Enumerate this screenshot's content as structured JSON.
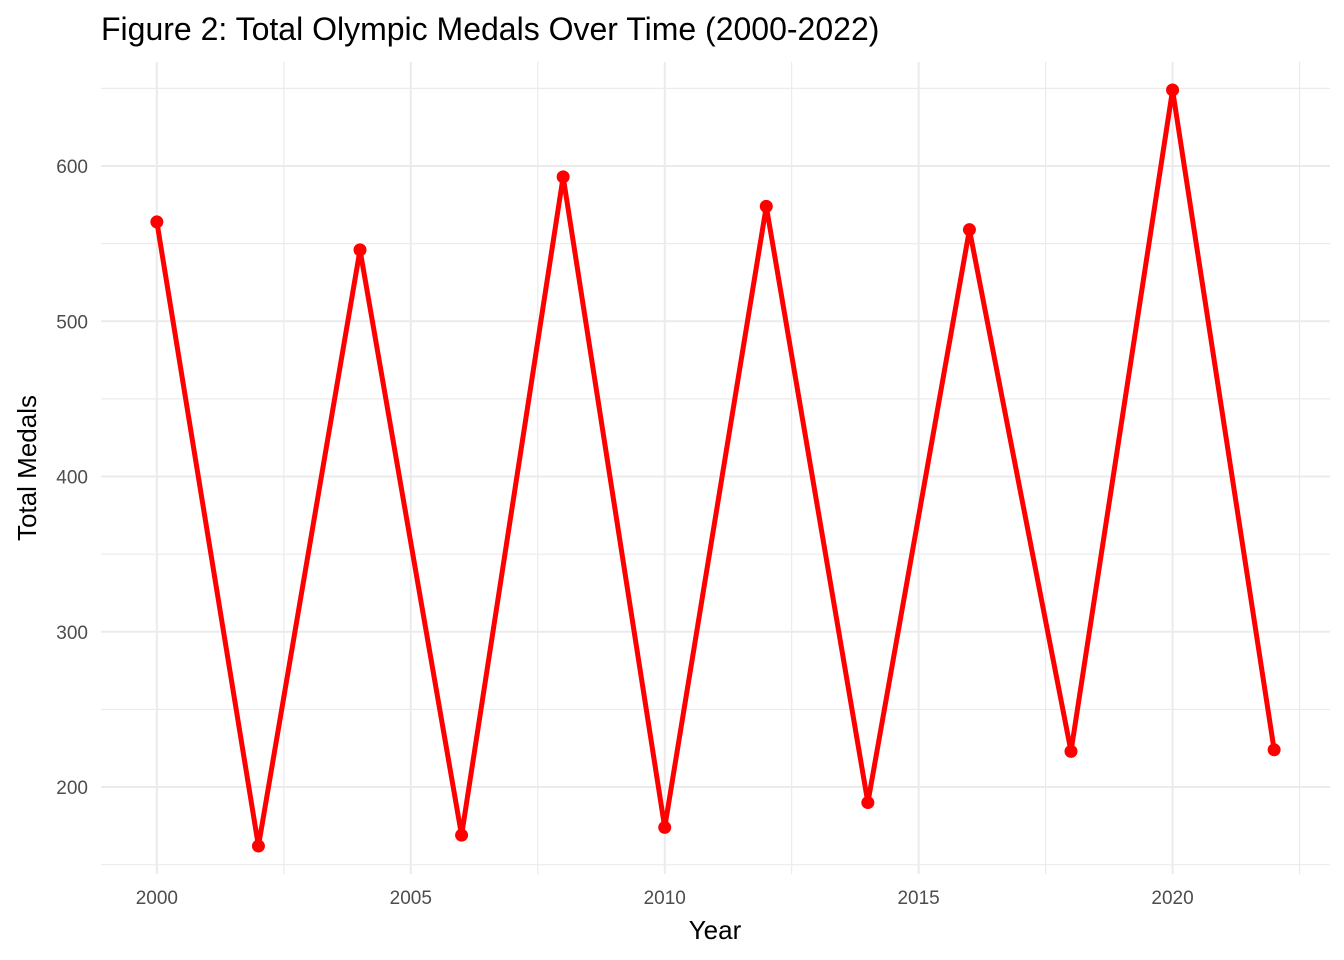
{
  "chart_data": {
    "type": "line",
    "title": "Figure 2: Total Olympic Medals Over Time (2000-2022)",
    "xlabel": "Year",
    "ylabel": "Total Medals",
    "x": [
      2000,
      2002,
      2004,
      2006,
      2008,
      2010,
      2012,
      2014,
      2016,
      2018,
      2020,
      2022
    ],
    "series": [
      {
        "values": [
          564,
          162,
          546,
          169,
          593,
          174,
          574,
          190,
          559,
          223,
          649,
          224
        ]
      }
    ],
    "xlim": [
      1998.9,
      2023.1
    ],
    "ylim": [
      144,
      667
    ],
    "x_ticks": [
      2000,
      2005,
      2010,
      2015,
      2020
    ],
    "x_tick_labels": [
      "2000",
      "2005",
      "2010",
      "2015",
      "2020"
    ],
    "y_ticks": [
      200,
      300,
      400,
      500,
      600
    ],
    "y_tick_labels": [
      "200",
      "300",
      "400",
      "500",
      "600"
    ],
    "grid": true,
    "legend": "none",
    "line_color": "#ff0000",
    "point_color": "#ff0000"
  }
}
